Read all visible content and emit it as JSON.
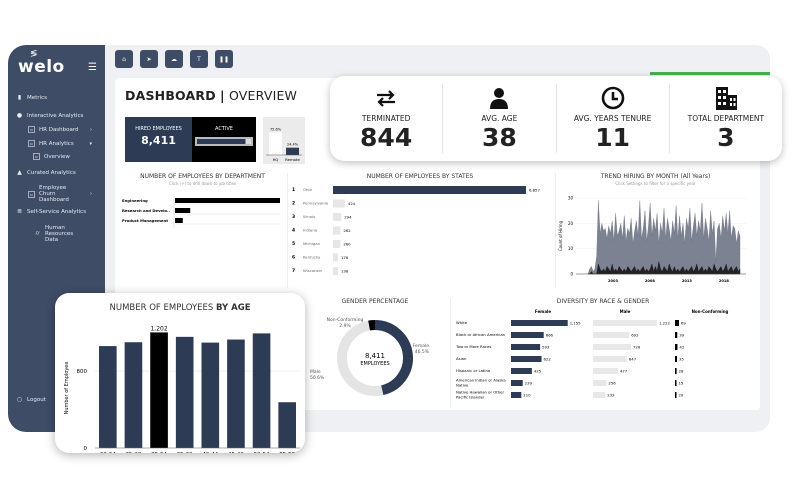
{
  "app": {
    "logo": "welo"
  },
  "sidebar": {
    "items": [
      {
        "label": "Metrics",
        "icon": "bar-chart-icon"
      },
      {
        "label": "Interactive Analytics",
        "icon": "pie-chart-icon"
      },
      {
        "label": "HR Dashboard",
        "icon": "dashboard-icon"
      },
      {
        "label": "HR Analytics",
        "icon": "dashboard-icon"
      },
      {
        "label": "Overview",
        "icon": "dashboard-icon"
      },
      {
        "label": "Curated Analytics",
        "icon": "area-chart-icon"
      },
      {
        "label": "Employee Churn Dashboard",
        "icon": "dashboard-icon"
      },
      {
        "label": "Self-Service Analytics",
        "icon": "database-icon"
      },
      {
        "label": "Human Resources Data",
        "icon": "cylinder-icon"
      }
    ],
    "logout": "Logout"
  },
  "toolbar": [
    "home-icon",
    "send-icon",
    "cloud-icon",
    "filter-icon",
    "pause-icon"
  ],
  "dashboard": {
    "title_bold": "DASHBOARD",
    "separator": "|",
    "title_light": "OVERVIEW",
    "hired_label": "HIRED EMPLOYEES",
    "hired_value": "8,411",
    "active_label": "ACTIVE",
    "active_fraction": 0.9,
    "location": {
      "categories": [
        "HQ",
        "Remote"
      ],
      "labels": [
        "75.6%",
        "24.4%"
      ],
      "values": [
        75.6,
        24.4
      ]
    }
  },
  "kpis": [
    {
      "label": "TERMINATED",
      "value": "844",
      "icon": "swap-arrows-icon"
    },
    {
      "label": "AVG. AGE",
      "value": "38",
      "icon": "person-icon"
    },
    {
      "label": "AVG. YEARS TENURE",
      "value": "11",
      "icon": "clock-icon"
    },
    {
      "label": "TOTAL DEPARTMENT",
      "value": "3",
      "icon": "building-icon"
    }
  ],
  "colors": {
    "navy": "#2e3b55",
    "sidebar": "#3e4c66",
    "black": "#000000",
    "lightbar": "#e6e6e6",
    "gray_area": "#7c8291",
    "accent_green": "#4caf50"
  },
  "chart_data": [
    {
      "type": "bar",
      "orientation": "horizontal",
      "title": "NUMBER OF EMPLOYEES BY DEPARTMENT",
      "subtitle": "Click (+) to drill down to job titles",
      "categories": [
        "Engineering",
        "Research and Develo..",
        "Product Management"
      ],
      "values": [
        6900,
        1000,
        510
      ]
    },
    {
      "type": "bar",
      "orientation": "horizontal",
      "title": "NUMBER OF EMPLOYEES BY STATES",
      "ranks": [
        "1",
        "2",
        "3",
        "4",
        "5",
        "6",
        "7"
      ],
      "categories": [
        "Ohio",
        "Pennsylvania",
        "Illinois",
        "Indiana",
        "Michigan",
        "Kentucky",
        "Wisconsin"
      ],
      "values": [
        6857,
        424,
        294,
        262,
        260,
        176,
        138
      ],
      "labels": [
        "6,857",
        "424",
        "294",
        "262",
        "260",
        "176",
        "138"
      ]
    },
    {
      "type": "area",
      "title": "TREND HIRING BY MONTH (All Years)",
      "subtitle": "Click Settings to filter for a specific year",
      "ylabel": "Count of Hiring",
      "ylim": [
        0,
        30
      ],
      "yticks": [
        "0",
        "10",
        "20",
        "30"
      ],
      "xticks": [
        "2003",
        "2008",
        "2013",
        "2018"
      ],
      "xrange": [
        1998,
        2021
      ],
      "series": [
        {
          "values": [
            0,
            2,
            3,
            1,
            2,
            7,
            29,
            16,
            20,
            17,
            18,
            14,
            19,
            16,
            21,
            13,
            24,
            15,
            17,
            20,
            14,
            23,
            13,
            18,
            16,
            22,
            12,
            17,
            21,
            15,
            29,
            14,
            18,
            25,
            13,
            19,
            28,
            15,
            22,
            17,
            24,
            12,
            20,
            16,
            26,
            14,
            22,
            18,
            13,
            21,
            16,
            27,
            14,
            23,
            15,
            20,
            12,
            22,
            18,
            26,
            13,
            19,
            24,
            15,
            21,
            17,
            28,
            14,
            22,
            18,
            13,
            25,
            16,
            21,
            5,
            18,
            20,
            14,
            23,
            17,
            24,
            16,
            25,
            14,
            19,
            18,
            12,
            17,
            15
          ]
        },
        {
          "values": [
            0,
            0,
            1,
            0,
            0,
            0,
            4,
            2,
            1,
            2,
            1,
            3,
            2,
            1,
            4,
            1,
            2,
            1,
            3,
            2,
            1,
            2,
            1,
            3,
            2,
            1,
            2,
            3,
            1,
            2,
            1,
            2,
            3,
            1,
            2,
            1,
            2,
            4,
            1,
            3,
            1,
            5,
            2,
            1,
            3,
            2,
            1,
            4,
            2,
            1,
            3,
            1,
            2,
            1,
            2,
            3,
            1,
            2,
            1,
            2,
            3,
            1,
            2,
            4,
            1,
            2,
            3,
            1,
            2,
            1,
            3,
            2,
            1,
            4,
            2,
            1,
            2,
            3,
            1,
            2,
            4,
            1,
            2,
            3,
            1,
            2,
            3,
            1,
            2
          ]
        }
      ]
    },
    {
      "type": "bar",
      "title_light": "NUMBER OF EMPLOYEES ",
      "title_bold": "BY AGE",
      "ylabel": "Number of Employee",
      "yticks": [
        "0",
        "800"
      ],
      "ylim": [
        0,
        1300
      ],
      "categories": [
        "20-24",
        "25-29",
        "30-34",
        "35-39",
        "40-44",
        "45-49",
        "50-54",
        "55-59"
      ],
      "values": [
        1060,
        1100,
        1202,
        1156,
        1096,
        1128,
        1192,
        476
      ],
      "highlight_label": "1,202",
      "highlight_index": 2
    },
    {
      "type": "pie",
      "donut": true,
      "title": "GENDER PERCENTAGE",
      "center_value": "8,411",
      "center_label": "EMPLOYEES",
      "categories": [
        "Non-Conforming",
        "Female",
        "Male"
      ],
      "values": [
        2.9,
        46.5,
        50.6
      ],
      "labels": [
        "2.9%",
        "46.5%",
        "50.6%"
      ]
    },
    {
      "type": "bar",
      "orientation": "horizontal",
      "title": "DIVERSITY BY RACE & GENDER",
      "categories": [
        "White",
        "Black or African American",
        "Two or More Races",
        "Asian",
        "Hispanic or Latino",
        "American Indian or Alaska Native",
        "Native Hawaiian or Other Pacific Islander"
      ],
      "series": [
        {
          "name": "Female",
          "values": [
            1155,
            666,
            593,
            622,
            425,
            239,
            210
          ],
          "labels": [
            "1,155",
            "666",
            "593",
            "622",
            "425",
            "239",
            "210"
          ]
        },
        {
          "name": "Male",
          "values": [
            1222,
            692,
            726,
            647,
            477,
            256,
            233
          ],
          "labels": [
            "1,222",
            "692",
            "726",
            "647",
            "477",
            "256",
            "233"
          ]
        },
        {
          "name": "Non-Conforming",
          "values": [
            69,
            39,
            42,
            35,
            28,
            15,
            20
          ],
          "labels": [
            "69",
            "39",
            "42",
            "35",
            "28",
            "15",
            "20"
          ]
        }
      ]
    }
  ]
}
